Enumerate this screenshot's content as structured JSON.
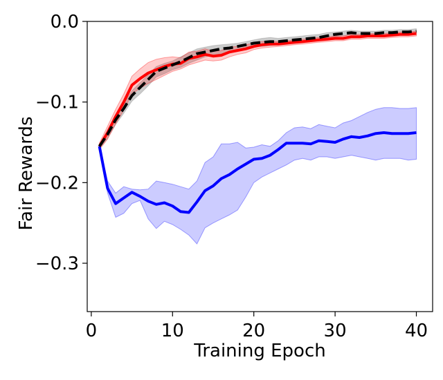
{
  "chart_data": {
    "type": "line",
    "title": "",
    "xlabel": "Training Epoch",
    "ylabel": "Fair Rewards",
    "xlim": [
      -0.5,
      42
    ],
    "ylim": [
      -0.36,
      0.0
    ],
    "xticks": [
      0,
      10,
      20,
      30,
      40
    ],
    "xtick_labels": [
      "0",
      "10",
      "20",
      "30",
      "40"
    ],
    "yticks": [
      0.0,
      -0.1,
      -0.2,
      -0.3
    ],
    "ytick_labels": [
      "0.0",
      "−0.1",
      "−0.2",
      "−0.3"
    ],
    "grid": false,
    "legend": "none",
    "x": [
      1,
      2,
      3,
      4,
      5,
      6,
      7,
      8,
      9,
      10,
      11,
      12,
      13,
      14,
      15,
      16,
      17,
      18,
      19,
      20,
      21,
      22,
      23,
      24,
      25,
      26,
      27,
      28,
      29,
      30,
      31,
      32,
      33,
      34,
      35,
      36,
      37,
      38,
      39,
      40
    ],
    "series": [
      {
        "name": "black-dashed",
        "color": "#000000",
        "band_color": "#808080",
        "dashed": true,
        "values": [
          -0.155,
          -0.14,
          -0.122,
          -0.108,
          -0.092,
          -0.082,
          -0.072,
          -0.062,
          -0.058,
          -0.054,
          -0.05,
          -0.045,
          -0.04,
          -0.038,
          -0.036,
          -0.034,
          -0.033,
          -0.031,
          -0.029,
          -0.027,
          -0.026,
          -0.025,
          -0.025,
          -0.024,
          -0.023,
          -0.022,
          -0.021,
          -0.02,
          -0.018,
          -0.016,
          -0.015,
          -0.014,
          -0.015,
          -0.015,
          -0.015,
          -0.014,
          -0.014,
          -0.013,
          -0.013,
          -0.012
        ],
        "lower": [
          -0.158,
          -0.145,
          -0.128,
          -0.114,
          -0.099,
          -0.09,
          -0.08,
          -0.069,
          -0.065,
          -0.06,
          -0.057,
          -0.052,
          -0.048,
          -0.044,
          -0.042,
          -0.04,
          -0.038,
          -0.036,
          -0.034,
          -0.032,
          -0.031,
          -0.03,
          -0.029,
          -0.028,
          -0.027,
          -0.026,
          -0.025,
          -0.023,
          -0.021,
          -0.019,
          -0.018,
          -0.017,
          -0.018,
          -0.018,
          -0.018,
          -0.017,
          -0.017,
          -0.016,
          -0.016,
          -0.015
        ],
        "upper": [
          -0.152,
          -0.135,
          -0.116,
          -0.102,
          -0.086,
          -0.076,
          -0.066,
          -0.056,
          -0.052,
          -0.049,
          -0.044,
          -0.039,
          -0.034,
          -0.032,
          -0.03,
          -0.029,
          -0.028,
          -0.027,
          -0.025,
          -0.023,
          -0.021,
          -0.02,
          -0.021,
          -0.02,
          -0.019,
          -0.018,
          -0.017,
          -0.016,
          -0.014,
          -0.013,
          -0.012,
          -0.011,
          -0.012,
          -0.012,
          -0.012,
          -0.011,
          -0.011,
          -0.01,
          -0.01,
          -0.009
        ]
      },
      {
        "name": "red",
        "color": "#ff0000",
        "band_color": "#ff0000",
        "dashed": false,
        "values": [
          -0.155,
          -0.138,
          -0.118,
          -0.1,
          -0.079,
          -0.071,
          -0.064,
          -0.06,
          -0.056,
          -0.053,
          -0.052,
          -0.046,
          -0.044,
          -0.041,
          -0.043,
          -0.042,
          -0.038,
          -0.036,
          -0.034,
          -0.031,
          -0.029,
          -0.028,
          -0.028,
          -0.027,
          -0.026,
          -0.025,
          -0.024,
          -0.023,
          -0.022,
          -0.021,
          -0.021,
          -0.019,
          -0.019,
          -0.018,
          -0.018,
          -0.018,
          -0.017,
          -0.016,
          -0.016,
          -0.015
        ],
        "lower": [
          -0.159,
          -0.146,
          -0.127,
          -0.11,
          -0.09,
          -0.083,
          -0.077,
          -0.072,
          -0.067,
          -0.062,
          -0.059,
          -0.054,
          -0.051,
          -0.048,
          -0.049,
          -0.048,
          -0.044,
          -0.041,
          -0.039,
          -0.035,
          -0.033,
          -0.032,
          -0.031,
          -0.03,
          -0.029,
          -0.028,
          -0.027,
          -0.026,
          -0.025,
          -0.024,
          -0.024,
          -0.022,
          -0.022,
          -0.021,
          -0.021,
          -0.021,
          -0.02,
          -0.019,
          -0.019,
          -0.018
        ],
        "upper": [
          -0.151,
          -0.13,
          -0.109,
          -0.09,
          -0.068,
          -0.059,
          -0.051,
          -0.047,
          -0.045,
          -0.044,
          -0.045,
          -0.038,
          -0.037,
          -0.034,
          -0.037,
          -0.036,
          -0.032,
          -0.031,
          -0.029,
          -0.027,
          -0.025,
          -0.024,
          -0.025,
          -0.024,
          -0.023,
          -0.022,
          -0.021,
          -0.02,
          -0.019,
          -0.018,
          -0.018,
          -0.016,
          -0.016,
          -0.015,
          -0.015,
          -0.015,
          -0.014,
          -0.013,
          -0.013,
          -0.012
        ]
      },
      {
        "name": "blue",
        "color": "#0000ff",
        "band_color": "#0000ff",
        "dashed": false,
        "values": [
          -0.155,
          -0.207,
          -0.226,
          -0.219,
          -0.212,
          -0.217,
          -0.223,
          -0.227,
          -0.225,
          -0.229,
          -0.236,
          -0.237,
          -0.224,
          -0.21,
          -0.204,
          -0.195,
          -0.19,
          -0.183,
          -0.177,
          -0.171,
          -0.17,
          -0.166,
          -0.159,
          -0.151,
          -0.151,
          -0.151,
          -0.152,
          -0.148,
          -0.149,
          -0.15,
          -0.146,
          -0.143,
          -0.144,
          -0.142,
          -0.139,
          -0.138,
          -0.139,
          -0.139,
          -0.139,
          -0.138
        ],
        "lower": [
          -0.157,
          -0.213,
          -0.243,
          -0.238,
          -0.226,
          -0.222,
          -0.245,
          -0.257,
          -0.248,
          -0.252,
          -0.258,
          -0.265,
          -0.276,
          -0.256,
          -0.25,
          -0.245,
          -0.24,
          -0.234,
          -0.218,
          -0.2,
          -0.193,
          -0.188,
          -0.183,
          -0.178,
          -0.172,
          -0.17,
          -0.172,
          -0.168,
          -0.168,
          -0.17,
          -0.168,
          -0.166,
          -0.168,
          -0.17,
          -0.172,
          -0.17,
          -0.17,
          -0.17,
          -0.172,
          -0.171
        ],
        "upper": [
          -0.153,
          -0.198,
          -0.213,
          -0.205,
          -0.208,
          -0.209,
          -0.208,
          -0.198,
          -0.2,
          -0.202,
          -0.205,
          -0.208,
          -0.198,
          -0.175,
          -0.168,
          -0.152,
          -0.152,
          -0.15,
          -0.157,
          -0.156,
          -0.153,
          -0.155,
          -0.148,
          -0.138,
          -0.132,
          -0.131,
          -0.133,
          -0.128,
          -0.13,
          -0.132,
          -0.126,
          -0.123,
          -0.118,
          -0.113,
          -0.109,
          -0.107,
          -0.107,
          -0.108,
          -0.108,
          -0.107
        ]
      }
    ]
  }
}
